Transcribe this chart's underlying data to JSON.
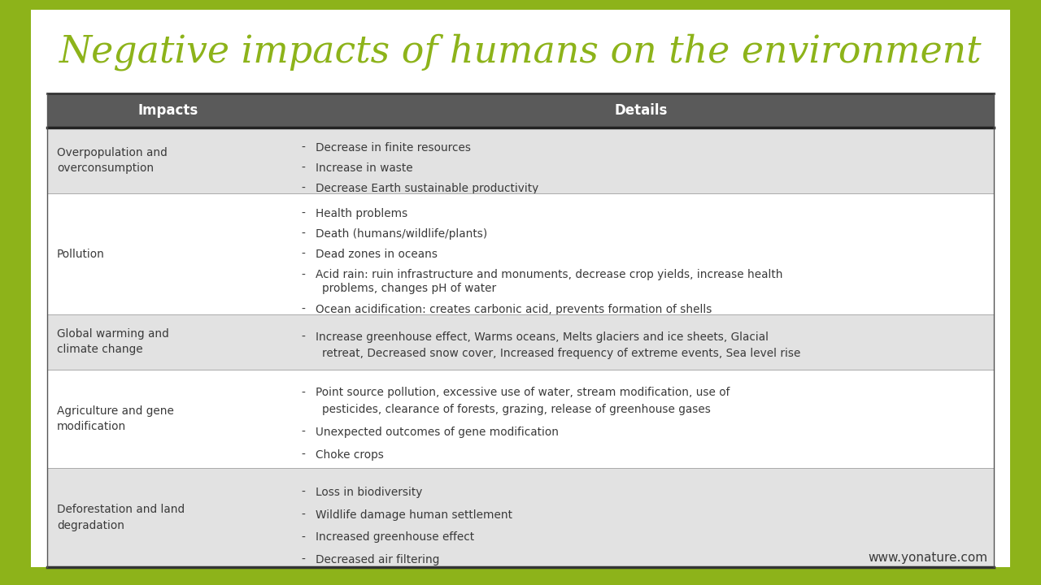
{
  "title": "Negative impacts of humans on the environment",
  "title_color": "#8db31a",
  "bg_color": "#8db31a",
  "inner_bg": "#ffffff",
  "header_bg": "#5a5a5a",
  "header_text_color": "#ffffff",
  "row_colors": [
    "#e2e2e2",
    "#ffffff",
    "#e2e2e2",
    "#ffffff",
    "#e2e2e2"
  ],
  "text_color": "#3a3a3a",
  "website": "www.yonature.com",
  "rows": [
    {
      "impact": "Overpopulation and\noverconsumption",
      "details": [
        "Decrease in finite resources",
        "Increase in waste",
        "Decrease Earth sustainable productivity"
      ]
    },
    {
      "impact": "Pollution",
      "details": [
        "Health problems",
        "Death (humans/wildlife/plants)",
        "Dead zones in oceans",
        "Acid rain: ruin infrastructure and monuments, decrease crop yields, increase health\nproblems, changes pH of water",
        "Ocean acidification: creates carbonic acid, prevents formation of shells"
      ]
    },
    {
      "impact": "Global warming and\nclimate change",
      "details": [
        "Increase greenhouse effect, Warms oceans, Melts glaciers and ice sheets, Glacial\nretreat, Decreased snow cover, Increased frequency of extreme events, Sea level rise"
      ]
    },
    {
      "impact": "Agriculture and gene\nmodification",
      "details": [
        "Point source pollution, excessive use of water, stream modification, use of\npesticides, clearance of forests, grazing, release of greenhouse gases",
        "Unexpected outcomes of gene modification",
        "Choke crops"
      ]
    },
    {
      "impact": "Deforestation and land\ndegradation",
      "details": [
        "Loss in biodiversity",
        "Wildlife damage human settlement",
        "Increased greenhouse effect",
        "Decreased air filtering"
      ]
    }
  ]
}
